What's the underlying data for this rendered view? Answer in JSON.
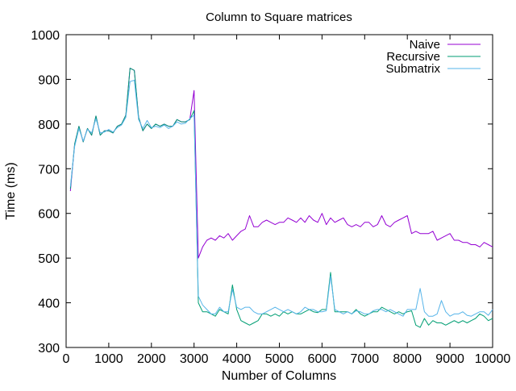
{
  "chart_data": {
    "type": "line",
    "title": "Column to Square matrices",
    "xlabel": "Number of Columns",
    "ylabel": "Time (ms)",
    "xlim": [
      0,
      10000
    ],
    "ylim": [
      300,
      1000
    ],
    "xticks": [
      0,
      1000,
      2000,
      3000,
      4000,
      5000,
      6000,
      7000,
      8000,
      9000,
      10000
    ],
    "yticks": [
      300,
      400,
      500,
      600,
      700,
      800,
      900,
      1000
    ],
    "grid": false,
    "legend_position": "top-right",
    "x": [
      100,
      200,
      300,
      400,
      500,
      600,
      700,
      800,
      900,
      1000,
      1100,
      1200,
      1300,
      1400,
      1500,
      1600,
      1700,
      1800,
      1900,
      2000,
      2100,
      2200,
      2300,
      2400,
      2500,
      2600,
      2700,
      2800,
      2900,
      3000,
      3100,
      3200,
      3300,
      3400,
      3500,
      3600,
      3700,
      3800,
      3900,
      4000,
      4100,
      4200,
      4300,
      4400,
      4500,
      4600,
      4700,
      4800,
      4900,
      5000,
      5100,
      5200,
      5300,
      5400,
      5500,
      5600,
      5700,
      5800,
      5900,
      6000,
      6100,
      6200,
      6300,
      6400,
      6500,
      6600,
      6700,
      6800,
      6900,
      7000,
      7100,
      7200,
      7300,
      7400,
      7500,
      7600,
      7700,
      7800,
      7900,
      8000,
      8100,
      8200,
      8300,
      8400,
      8500,
      8600,
      8700,
      8800,
      8900,
      9000,
      9100,
      9200,
      9300,
      9400,
      9500,
      9600,
      9700,
      9800,
      9900,
      10000
    ],
    "series": [
      {
        "name": "Naive",
        "color": "#9400d3",
        "values": [
          650,
          755,
          795,
          760,
          790,
          775,
          818,
          775,
          785,
          785,
          780,
          795,
          800,
          820,
          925,
          920,
          815,
          785,
          800,
          790,
          800,
          795,
          800,
          795,
          795,
          810,
          805,
          805,
          810,
          875,
          500,
          525,
          540,
          545,
          540,
          550,
          545,
          555,
          540,
          550,
          560,
          565,
          595,
          570,
          570,
          580,
          585,
          580,
          575,
          580,
          580,
          590,
          585,
          580,
          590,
          580,
          595,
          585,
          580,
          600,
          575,
          590,
          580,
          585,
          590,
          575,
          570,
          575,
          570,
          580,
          580,
          570,
          575,
          595,
          575,
          570,
          580,
          585,
          590,
          595,
          555,
          560,
          555,
          555,
          555,
          560,
          540,
          545,
          550,
          555,
          540,
          540,
          535,
          535,
          530,
          530,
          525,
          535,
          530,
          525
        ],
        "_note": "values approximate"
      },
      {
        "name": "Recursive",
        "color": "#009e73",
        "values": [
          655,
          755,
          795,
          760,
          790,
          775,
          818,
          775,
          785,
          785,
          780,
          795,
          800,
          820,
          925,
          920,
          815,
          785,
          800,
          790,
          800,
          795,
          800,
          795,
          795,
          810,
          805,
          805,
          810,
          830,
          400,
          380,
          380,
          375,
          370,
          385,
          380,
          375,
          440,
          385,
          360,
          355,
          350,
          355,
          360,
          375,
          375,
          370,
          375,
          370,
          380,
          375,
          380,
          375,
          375,
          380,
          385,
          380,
          378,
          385,
          385,
          468,
          380,
          380,
          380,
          380,
          375,
          385,
          375,
          370,
          375,
          380,
          380,
          390,
          385,
          380,
          375,
          380,
          375,
          380,
          382,
          350,
          345,
          365,
          350,
          360,
          355,
          355,
          350,
          355,
          360,
          355,
          360,
          355,
          360,
          365,
          375,
          370,
          360,
          365
        ],
        "_note": "values approximate"
      },
      {
        "name": "Submatrix",
        "color": "#56b4e9",
        "values": [
          660,
          750,
          790,
          762,
          788,
          780,
          812,
          780,
          782,
          788,
          782,
          792,
          798,
          815,
          895,
          898,
          810,
          790,
          808,
          792,
          795,
          792,
          798,
          790,
          795,
          805,
          800,
          802,
          812,
          820,
          415,
          395,
          385,
          375,
          375,
          390,
          380,
          380,
          430,
          390,
          385,
          390,
          390,
          380,
          375,
          375,
          380,
          385,
          390,
          385,
          380,
          385,
          380,
          375,
          380,
          390,
          385,
          385,
          380,
          380,
          382,
          460,
          385,
          380,
          375,
          380,
          375,
          382,
          380,
          375,
          375,
          382,
          385,
          385,
          380,
          385,
          380,
          375,
          370,
          385,
          385,
          385,
          432,
          380,
          370,
          370,
          375,
          405,
          380,
          370,
          375,
          375,
          380,
          372,
          370,
          375,
          380,
          380,
          372,
          385
        ]
      }
    ]
  }
}
